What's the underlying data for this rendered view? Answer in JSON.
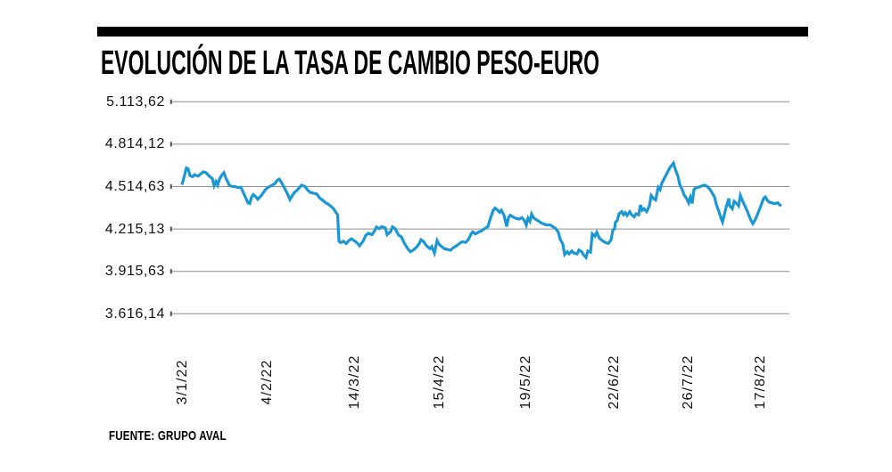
{
  "title": "EVOLUCIÓN DE LA TASA DE CAMBIO PESO-EURO",
  "source": "FUENTE: GRUPO AVAL",
  "colors": {
    "line": "#1b97d5",
    "grid": "#8f8f8f",
    "tick": "#555555",
    "bar": "#000000"
  },
  "chart_data": {
    "type": "line",
    "title": "EVOLUCIÓN DE LA TASA DE CAMBIO PESO-EURO",
    "series_name": "Tasa de cambio peso-euro",
    "xlabel": "",
    "ylabel": "",
    "grid": "horizontal",
    "legend": "none",
    "ylim": [
      3466.39,
      5263.37
    ],
    "y_ticks": [
      {
        "label": "5.113,62",
        "value": 5113.62
      },
      {
        "label": "4.814,12",
        "value": 4814.12
      },
      {
        "label": "4.514,63",
        "value": 4514.63
      },
      {
        "label": "4.215,13",
        "value": 4215.13
      },
      {
        "label": "3.915,63",
        "value": 3915.63
      },
      {
        "label": "3.616,14",
        "value": 3616.14
      }
    ],
    "x_ticks": [
      {
        "label": "3/1/22",
        "t": 0.0015
      },
      {
        "label": "4/2/22",
        "t": 0.1429
      },
      {
        "label": "14/3/22",
        "t": 0.2887
      },
      {
        "label": "15/4/22",
        "t": 0.4301
      },
      {
        "label": "19/5/22",
        "t": 0.5744
      },
      {
        "label": "22/6/22",
        "t": 0.7217
      },
      {
        "label": "26/7/22",
        "t": 0.8452
      },
      {
        "label": "17/8/22",
        "t": 0.9658
      }
    ],
    "points": [
      [
        0,
        4527
      ],
      [
        0.0074,
        4646
      ],
      [
        0.0104,
        4640
      ],
      [
        0.0134,
        4592
      ],
      [
        0.0179,
        4584
      ],
      [
        0.0208,
        4598
      ],
      [
        0.0268,
        4588
      ],
      [
        0.0313,
        4604
      ],
      [
        0.0357,
        4619
      ],
      [
        0.0402,
        4613
      ],
      [
        0.0446,
        4592
      ],
      [
        0.0506,
        4571
      ],
      [
        0.0536,
        4521
      ],
      [
        0.0565,
        4550
      ],
      [
        0.0595,
        4525
      ],
      [
        0.0625,
        4567
      ],
      [
        0.067,
        4598
      ],
      [
        0.0699,
        4613
      ],
      [
        0.0729,
        4578
      ],
      [
        0.0789,
        4525
      ],
      [
        0.0833,
        4515
      ],
      [
        0.0878,
        4515
      ],
      [
        0.0938,
        4508
      ],
      [
        0.0982,
        4510
      ],
      [
        0.1012,
        4483
      ],
      [
        0.1057,
        4441
      ],
      [
        0.1101,
        4400
      ],
      [
        0.1131,
        4395
      ],
      [
        0.1161,
        4441
      ],
      [
        0.119,
        4458
      ],
      [
        0.1235,
        4441
      ],
      [
        0.1265,
        4425
      ],
      [
        0.1324,
        4452
      ],
      [
        0.1384,
        4488
      ],
      [
        0.1429,
        4508
      ],
      [
        0.1488,
        4520
      ],
      [
        0.1548,
        4535
      ],
      [
        0.1592,
        4560
      ],
      [
        0.1622,
        4567
      ],
      [
        0.1652,
        4550
      ],
      [
        0.1696,
        4515
      ],
      [
        0.1756,
        4467
      ],
      [
        0.1801,
        4423
      ],
      [
        0.1875,
        4473
      ],
      [
        0.192,
        4488
      ],
      [
        0.1994,
        4525
      ],
      [
        0.2054,
        4515
      ],
      [
        0.2098,
        4488
      ],
      [
        0.2143,
        4473
      ],
      [
        0.2202,
        4467
      ],
      [
        0.2247,
        4463
      ],
      [
        0.2292,
        4436
      ],
      [
        0.2351,
        4417
      ],
      [
        0.2396,
        4400
      ],
      [
        0.244,
        4390
      ],
      [
        0.2485,
        4375
      ],
      [
        0.253,
        4358
      ],
      [
        0.2574,
        4327
      ],
      [
        0.2597,
        4317
      ],
      [
        0.2619,
        4128
      ],
      [
        0.2649,
        4118
      ],
      [
        0.2693,
        4128
      ],
      [
        0.2738,
        4112
      ],
      [
        0.2783,
        4133
      ],
      [
        0.2827,
        4145
      ],
      [
        0.2887,
        4128
      ],
      [
        0.2917,
        4118
      ],
      [
        0.2961,
        4096
      ],
      [
        0.3021,
        4128
      ],
      [
        0.3065,
        4170
      ],
      [
        0.311,
        4185
      ],
      [
        0.317,
        4175
      ],
      [
        0.3214,
        4202
      ],
      [
        0.3244,
        4229
      ],
      [
        0.3289,
        4217
      ],
      [
        0.3333,
        4232
      ],
      [
        0.3393,
        4222
      ],
      [
        0.3423,
        4175
      ],
      [
        0.3482,
        4197
      ],
      [
        0.3512,
        4230
      ],
      [
        0.3557,
        4217
      ],
      [
        0.3616,
        4170
      ],
      [
        0.3661,
        4160
      ],
      [
        0.3705,
        4118
      ],
      [
        0.3765,
        4076
      ],
      [
        0.381,
        4055
      ],
      [
        0.3854,
        4065
      ],
      [
        0.3914,
        4087
      ],
      [
        0.3958,
        4112
      ],
      [
        0.3988,
        4139
      ],
      [
        0.4033,
        4125
      ],
      [
        0.4077,
        4097
      ],
      [
        0.4137,
        4076
      ],
      [
        0.4167,
        4091
      ],
      [
        0.4211,
        4045
      ],
      [
        0.4256,
        4133
      ],
      [
        0.4286,
        4108
      ],
      [
        0.433,
        4091
      ],
      [
        0.4375,
        4076
      ],
      [
        0.4435,
        4070
      ],
      [
        0.4479,
        4065
      ],
      [
        0.4524,
        4082
      ],
      [
        0.4583,
        4097
      ],
      [
        0.4628,
        4112
      ],
      [
        0.4673,
        4125
      ],
      [
        0.4732,
        4120
      ],
      [
        0.4777,
        4139
      ],
      [
        0.4821,
        4180
      ],
      [
        0.4851,
        4195
      ],
      [
        0.4896,
        4180
      ],
      [
        0.4955,
        4195
      ],
      [
        0.5,
        4202
      ],
      [
        0.5045,
        4217
      ],
      [
        0.5104,
        4233
      ],
      [
        0.5149,
        4295
      ],
      [
        0.5193,
        4347
      ],
      [
        0.5223,
        4363
      ],
      [
        0.5268,
        4347
      ],
      [
        0.5298,
        4333
      ],
      [
        0.5327,
        4347
      ],
      [
        0.5372,
        4312
      ],
      [
        0.5417,
        4232
      ],
      [
        0.5446,
        4295
      ],
      [
        0.5476,
        4312
      ],
      [
        0.5521,
        4300
      ],
      [
        0.5565,
        4291
      ],
      [
        0.5625,
        4285
      ],
      [
        0.567,
        4295
      ],
      [
        0.5714,
        4274
      ],
      [
        0.5744,
        4243
      ],
      [
        0.5774,
        4291
      ],
      [
        0.5804,
        4270
      ],
      [
        0.5833,
        4320
      ],
      [
        0.5863,
        4295
      ],
      [
        0.5893,
        4285
      ],
      [
        0.5938,
        4274
      ],
      [
        0.5997,
        4257
      ],
      [
        0.6042,
        4249
      ],
      [
        0.6086,
        4243
      ],
      [
        0.6146,
        4243
      ],
      [
        0.619,
        4230
      ],
      [
        0.6235,
        4218
      ],
      [
        0.628,
        4191
      ],
      [
        0.631,
        4143
      ],
      [
        0.6354,
        4108
      ],
      [
        0.6384,
        4034
      ],
      [
        0.6429,
        4055
      ],
      [
        0.6458,
        4039
      ],
      [
        0.6503,
        4059
      ],
      [
        0.6533,
        4045
      ],
      [
        0.6592,
        4039
      ],
      [
        0.6622,
        4066
      ],
      [
        0.6667,
        4055
      ],
      [
        0.6696,
        4034
      ],
      [
        0.6741,
        4013
      ],
      [
        0.6771,
        4059
      ],
      [
        0.6815,
        4051
      ],
      [
        0.6845,
        4181
      ],
      [
        0.689,
        4164
      ],
      [
        0.692,
        4191
      ],
      [
        0.6964,
        4149
      ],
      [
        0.7009,
        4134
      ],
      [
        0.7054,
        4121
      ],
      [
        0.7113,
        4113
      ],
      [
        0.7158,
        4138
      ],
      [
        0.7188,
        4205
      ],
      [
        0.7217,
        4218
      ],
      [
        0.7232,
        4264
      ],
      [
        0.7262,
        4274
      ],
      [
        0.7292,
        4322
      ],
      [
        0.7336,
        4337
      ],
      [
        0.7366,
        4316
      ],
      [
        0.7396,
        4331
      ],
      [
        0.7426,
        4310
      ],
      [
        0.747,
        4337
      ],
      [
        0.75,
        4316
      ],
      [
        0.7545,
        4301
      ],
      [
        0.7574,
        4322
      ],
      [
        0.7619,
        4316
      ],
      [
        0.7649,
        4385
      ],
      [
        0.7679,
        4347
      ],
      [
        0.7708,
        4358
      ],
      [
        0.7753,
        4337
      ],
      [
        0.7798,
        4379
      ],
      [
        0.7827,
        4452
      ],
      [
        0.7857,
        4435
      ],
      [
        0.7902,
        4420
      ],
      [
        0.7946,
        4510
      ],
      [
        0.7976,
        4494
      ],
      [
        0.8006,
        4540
      ],
      [
        0.8051,
        4575
      ],
      [
        0.8095,
        4612
      ],
      [
        0.814,
        4648
      ],
      [
        0.8199,
        4680
      ],
      [
        0.8229,
        4638
      ],
      [
        0.8274,
        4588
      ],
      [
        0.8304,
        4530
      ],
      [
        0.8348,
        4490
      ],
      [
        0.8378,
        4455
      ],
      [
        0.8423,
        4427
      ],
      [
        0.8452,
        4400
      ],
      [
        0.8482,
        4440
      ],
      [
        0.8512,
        4396
      ],
      [
        0.8542,
        4494
      ],
      [
        0.8571,
        4505
      ],
      [
        0.8616,
        4510
      ],
      [
        0.8676,
        4519
      ],
      [
        0.872,
        4525
      ],
      [
        0.8765,
        4515
      ],
      [
        0.881,
        4494
      ],
      [
        0.8839,
        4473
      ],
      [
        0.8884,
        4441
      ],
      [
        0.8914,
        4389
      ],
      [
        0.8958,
        4337
      ],
      [
        0.8988,
        4295
      ],
      [
        0.9018,
        4264
      ],
      [
        0.9048,
        4316
      ],
      [
        0.9077,
        4368
      ],
      [
        0.9122,
        4431
      ],
      [
        0.9137,
        4379
      ],
      [
        0.9181,
        4358
      ],
      [
        0.9211,
        4410
      ],
      [
        0.9256,
        4394
      ],
      [
        0.9286,
        4379
      ],
      [
        0.9315,
        4452
      ],
      [
        0.9345,
        4420
      ],
      [
        0.939,
        4379
      ],
      [
        0.9435,
        4337
      ],
      [
        0.9464,
        4306
      ],
      [
        0.9494,
        4274
      ],
      [
        0.9524,
        4253
      ],
      [
        0.9568,
        4285
      ],
      [
        0.9598,
        4316
      ],
      [
        0.9628,
        4347
      ],
      [
        0.9658,
        4379
      ],
      [
        0.9702,
        4431
      ],
      [
        0.9732,
        4441
      ],
      [
        0.9762,
        4420
      ],
      [
        0.9792,
        4406
      ],
      [
        0.9836,
        4400
      ],
      [
        0.9881,
        4394
      ],
      [
        0.994,
        4400
      ],
      [
        0.997,
        4385
      ],
      [
        1,
        4379
      ]
    ]
  }
}
